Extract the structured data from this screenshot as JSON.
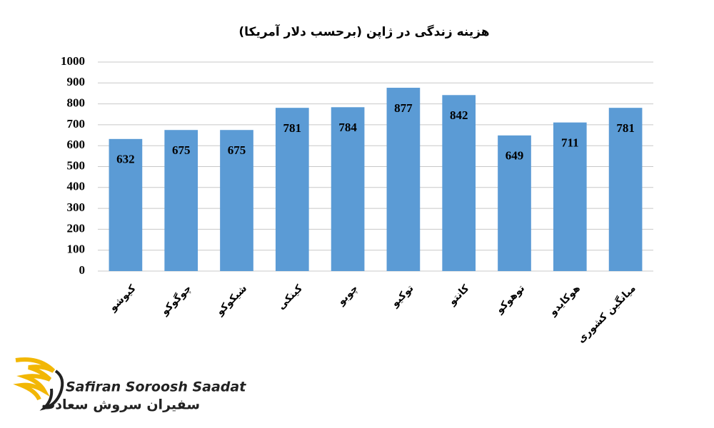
{
  "chart_data": {
    "type": "bar",
    "title": "هزینه زندگی در ژاپن (برحسب دلار آمریکا)",
    "categories": [
      "کیوشو",
      "چوگوکو",
      "شیکوکو",
      "کینکی",
      "چوبو",
      "توکیو",
      "کانتو",
      "توهوکو",
      "هوکایدو",
      "میانگین کشوری"
    ],
    "values": [
      632,
      675,
      675,
      781,
      784,
      877,
      842,
      649,
      711,
      781
    ],
    "color": "#5b9bd5",
    "ylim": [
      0,
      1000
    ],
    "yticks": [
      0,
      100,
      200,
      300,
      400,
      500,
      600,
      700,
      800,
      900,
      1000
    ],
    "grid": true
  },
  "logo": {
    "latin": "Safiran Soroosh Saadat",
    "persian": "سفیران سروش سعادت"
  }
}
